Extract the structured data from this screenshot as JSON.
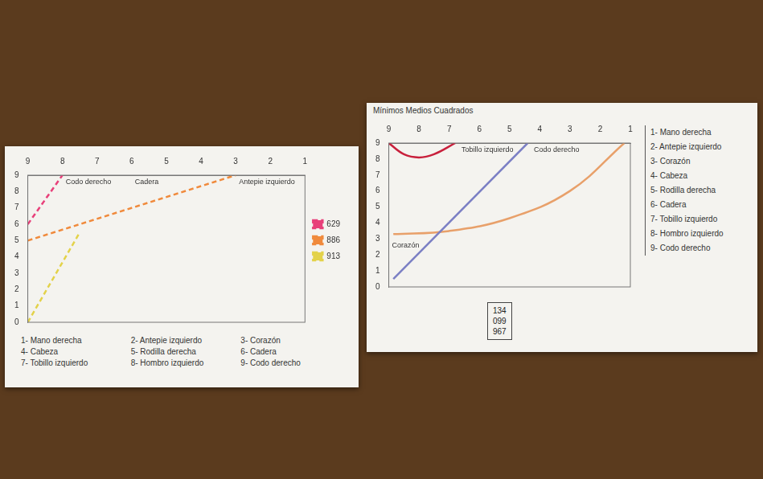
{
  "chart_data": [
    {
      "type": "line",
      "series": [
        {
          "name": "629",
          "color": "#e8407a",
          "line_style": "dashed",
          "x": [
            9,
            8
          ],
          "values": [
            6,
            9
          ]
        },
        {
          "name": "886",
          "color": "#f08a3c",
          "line_style": "dashed",
          "x": [
            9,
            3
          ],
          "values": [
            5,
            9
          ]
        },
        {
          "name": "913",
          "color": "#e3d24a",
          "line_style": "dashed",
          "x": [
            9,
            7.5
          ],
          "values": [
            0,
            5.5
          ]
        }
      ],
      "xlim": [
        9,
        1
      ],
      "xticks": [
        1,
        2,
        3,
        4,
        5,
        6,
        7,
        8,
        9
      ],
      "ylim": [
        0,
        9
      ],
      "yticks": [
        0,
        1,
        2,
        3,
        4,
        5,
        6,
        7,
        8,
        9
      ],
      "grid": false,
      "legend": "right",
      "annotations": [
        {
          "x": 8,
          "y": 9,
          "text": "Codo derecho"
        },
        {
          "x": 6,
          "y": 9,
          "text": "Cadera"
        },
        {
          "x": 3,
          "y": 9,
          "text": "Antepie izquierdo"
        }
      ],
      "key": [
        "1- Mano derecha",
        "2- Antepie izquierdo",
        "3- Corazón",
        "4- Cabeza",
        "5- Rodilla derecha",
        "6- Cadera",
        "7- Tobillo izquierdo",
        "8- Hombro izquierdo",
        "9- Codo derecho"
      ]
    },
    {
      "type": "line",
      "title": "Mínimos Medios Cuadrados",
      "series": [
        {
          "color": "#c8203c",
          "line_style": "solid",
          "x": [
            9,
            8.5,
            8,
            7.5,
            6.8
          ],
          "values": [
            9,
            8.3,
            8.1,
            8.3,
            9
          ]
        },
        {
          "color": "#7b7fc4",
          "line_style": "solid",
          "x": [
            8.85,
            4.4
          ],
          "values": [
            0.5,
            9
          ]
        },
        {
          "color": "#e8a06a",
          "line_style": "solid",
          "x": [
            8.85,
            7,
            5,
            3,
            1.2
          ],
          "values": [
            3.3,
            3.5,
            4.3,
            6,
            9
          ]
        }
      ],
      "xlim": [
        9,
        1
      ],
      "xticks": [
        1,
        2,
        3,
        4,
        5,
        6,
        7,
        8,
        9
      ],
      "ylim": [
        0,
        9
      ],
      "yticks": [
        0,
        1,
        2,
        3,
        4,
        5,
        6,
        7,
        8,
        9
      ],
      "grid": false,
      "annotations": [
        {
          "x": 6.7,
          "y": 9,
          "text": "Tobillo izquierdo"
        },
        {
          "x": 4.3,
          "y": 9,
          "text": "Codo derecho"
        },
        {
          "x": 9,
          "y": 3,
          "text": "Corazón"
        }
      ],
      "key": [
        "1- Mano derecha",
        "2- Antepie izquierdo",
        "3- Corazón",
        "4- Cabeza",
        "5- Rodilla derecha",
        "6- Cadera",
        "7- Tobillo izquierdo",
        "8- Hombro izquierdo",
        "9- Codo derecho"
      ],
      "box": [
        "134",
        "099",
        "967"
      ]
    }
  ]
}
